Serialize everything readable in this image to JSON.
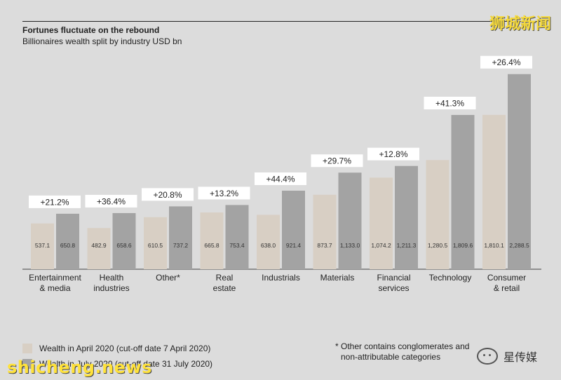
{
  "watermarks": {
    "top_right": "狮城新闻",
    "bottom_left": "shicheng.news",
    "bottom_right": "星传媒"
  },
  "chart_data": {
    "type": "bar",
    "title": "Fortunes fluctuate on the rebound",
    "subtitle": "Billionaires wealth split by industry USD bn",
    "categories": [
      [
        "Entertainment",
        "& media"
      ],
      [
        "Health",
        "industries"
      ],
      [
        "Other*"
      ],
      [
        "Real",
        "estate"
      ],
      [
        "Industrials"
      ],
      [
        "Materials"
      ],
      [
        "Financial",
        "services"
      ],
      [
        "Technology"
      ],
      [
        "Consumer",
        "& retail"
      ]
    ],
    "series": [
      {
        "name": "Wealth in April 2020 (cut-off date 7 April 2020)",
        "color": "#d8cfc4",
        "values": [
          537.1,
          482.9,
          610.5,
          665.8,
          638.0,
          873.7,
          1074.2,
          1280.5,
          1810.1
        ],
        "labels": [
          "537.1",
          "482.9",
          "610.5",
          "665.8",
          "638.0",
          "873.7",
          "1,074.2",
          "1,280.5",
          "1,810.1"
        ]
      },
      {
        "name": "Wealth in July 2020 (cut-off date 31 July 2020)",
        "color": "#a3a3a3",
        "values": [
          650.8,
          658.6,
          737.2,
          753.4,
          921.4,
          1133.0,
          1211.3,
          1809.6,
          2288.5
        ],
        "labels": [
          "650.8",
          "658.6",
          "737.2",
          "753.4",
          "921.4",
          "1,133.0",
          "1,211.3",
          "1,809.6",
          "2,288.5"
        ]
      }
    ],
    "changes": [
      "+21.2%",
      "+36.4%",
      "+20.8%",
      "+13.2%",
      "+44.4%",
      "+29.7%",
      "+12.8%",
      "+41.3%",
      "+26.4%"
    ],
    "ylim": [
      0,
      2500
    ],
    "grid": false,
    "legend_position": "bottom-left",
    "footnote": [
      "* Other contains conglomerates and",
      "non-attributable categories"
    ]
  }
}
